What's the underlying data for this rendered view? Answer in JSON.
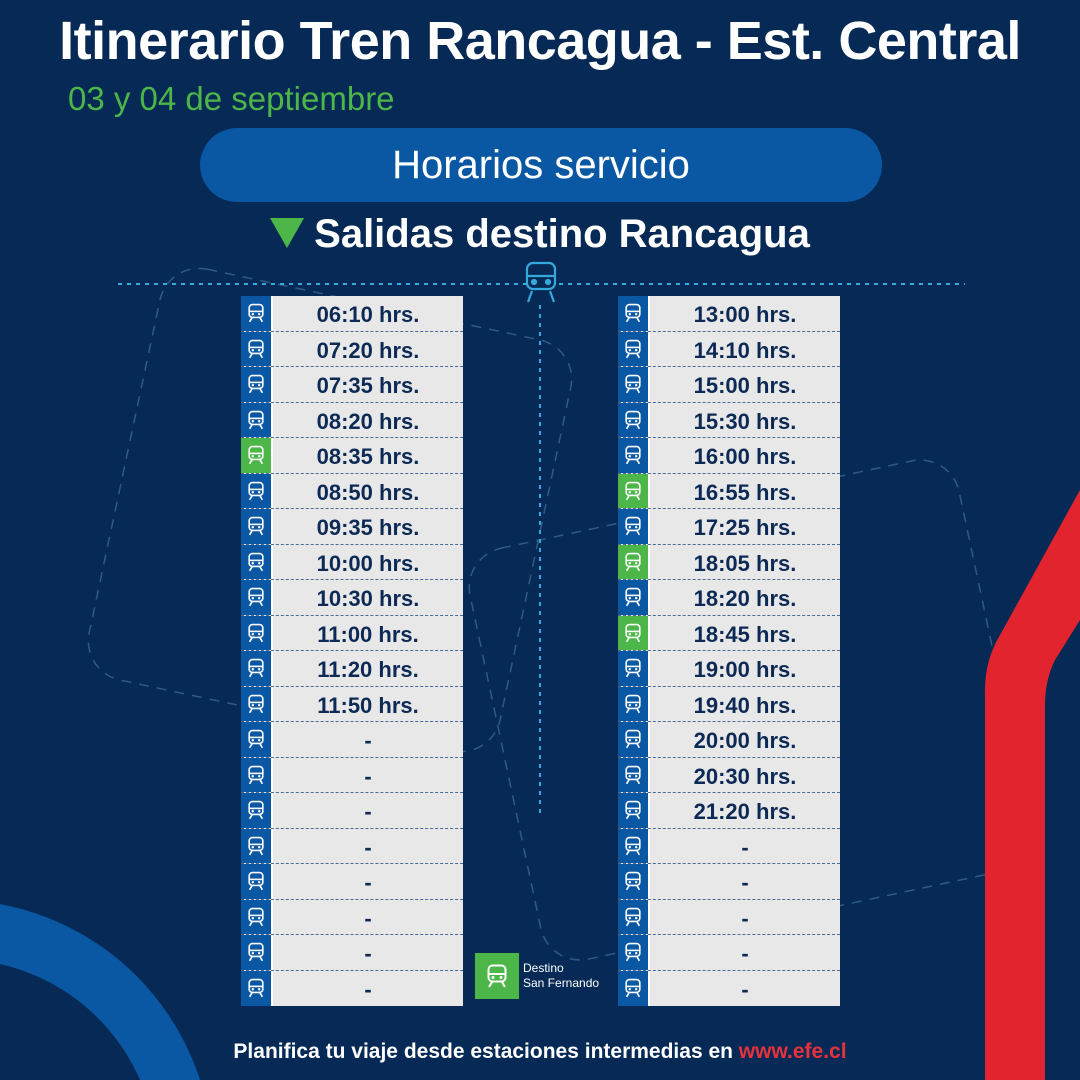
{
  "title": "Itinerario Tren Rancagua - Est. Central",
  "subtitle": "03 y 04 de septiembre",
  "pill_label": "Horarios servicio",
  "section_title": "Salidas destino Rancagua",
  "colors": {
    "background": "#062a55",
    "accent_blue": "#0a57a4",
    "accent_green": "#4cb648",
    "accent_red": "#e8313a",
    "row_bg": "#e8e8e8"
  },
  "icons": [
    "train-icon",
    "triangle-down-icon"
  ],
  "schedule_left": [
    {
      "time": "06:10 hrs.",
      "destination": "Rancagua"
    },
    {
      "time": "07:20 hrs.",
      "destination": "Rancagua"
    },
    {
      "time": "07:35 hrs.",
      "destination": "Rancagua"
    },
    {
      "time": "08:20 hrs.",
      "destination": "Rancagua"
    },
    {
      "time": "08:35 hrs.",
      "destination": "San Fernando"
    },
    {
      "time": "08:50 hrs.",
      "destination": "Rancagua"
    },
    {
      "time": "09:35 hrs.",
      "destination": "Rancagua"
    },
    {
      "time": "10:00 hrs.",
      "destination": "Rancagua"
    },
    {
      "time": "10:30 hrs.",
      "destination": "Rancagua"
    },
    {
      "time": "11:00 hrs.",
      "destination": "Rancagua"
    },
    {
      "time": "11:20 hrs.",
      "destination": "Rancagua"
    },
    {
      "time": "11:50 hrs.",
      "destination": "Rancagua"
    },
    {
      "time": "-",
      "destination": "Rancagua"
    },
    {
      "time": "-",
      "destination": "Rancagua"
    },
    {
      "time": "-",
      "destination": "Rancagua"
    },
    {
      "time": "-",
      "destination": "Rancagua"
    },
    {
      "time": "-",
      "destination": "Rancagua"
    },
    {
      "time": "-",
      "destination": "Rancagua"
    },
    {
      "time": "-",
      "destination": "Rancagua"
    },
    {
      "time": "-",
      "destination": "Rancagua"
    }
  ],
  "schedule_right": [
    {
      "time": "13:00 hrs.",
      "destination": "Rancagua"
    },
    {
      "time": "14:10 hrs.",
      "destination": "Rancagua"
    },
    {
      "time": "15:00 hrs.",
      "destination": "Rancagua"
    },
    {
      "time": "15:30 hrs.",
      "destination": "Rancagua"
    },
    {
      "time": "16:00 hrs.",
      "destination": "Rancagua"
    },
    {
      "time": "16:55 hrs.",
      "destination": "San Fernando"
    },
    {
      "time": "17:25 hrs.",
      "destination": "Rancagua"
    },
    {
      "time": "18:05 hrs.",
      "destination": "San Fernando"
    },
    {
      "time": "18:20 hrs.",
      "destination": "Rancagua"
    },
    {
      "time": "18:45 hrs.",
      "destination": "San Fernando"
    },
    {
      "time": "19:00 hrs.",
      "destination": "Rancagua"
    },
    {
      "time": "19:40 hrs.",
      "destination": "Rancagua"
    },
    {
      "time": "20:00 hrs.",
      "destination": "Rancagua"
    },
    {
      "time": "20:30 hrs.",
      "destination": "Rancagua"
    },
    {
      "time": "21:20 hrs.",
      "destination": "Rancagua"
    },
    {
      "time": "-",
      "destination": "Rancagua"
    },
    {
      "time": "-",
      "destination": "Rancagua"
    },
    {
      "time": "-",
      "destination": "Rancagua"
    },
    {
      "time": "-",
      "destination": "Rancagua"
    },
    {
      "time": "-",
      "destination": "Rancagua"
    }
  ],
  "legend": {
    "line1": "Destino",
    "line2": "San Fernando"
  },
  "footer": {
    "text": "Planifica tu viaje desde estaciones intermedias en ",
    "url": "www.efe.cl"
  }
}
